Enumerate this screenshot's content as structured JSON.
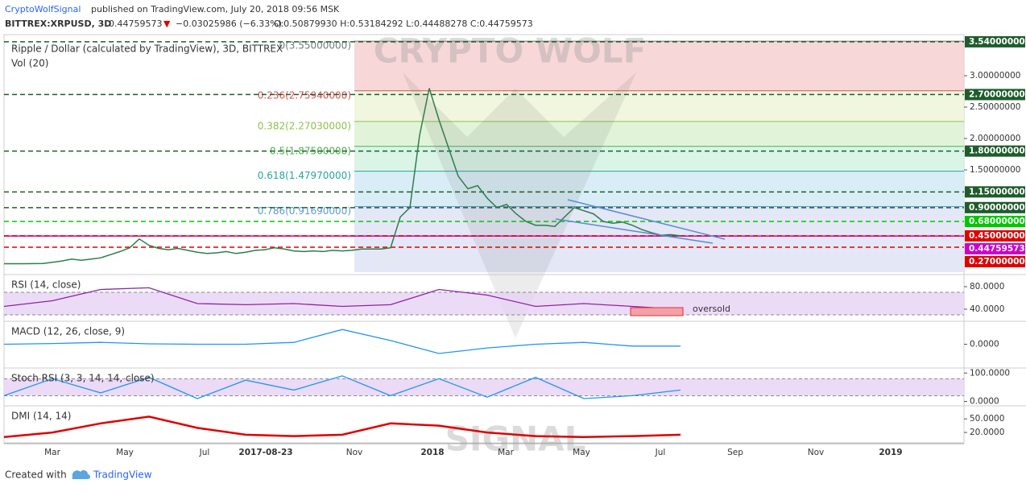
{
  "header": {
    "author": "CryptoWolfSignal",
    "published": "published on TradingView.com, July 20, 2018 09:56 MSK",
    "symbol": "BITTREX:XRPUSD, 3D",
    "last": "0.44759573",
    "change": "−0.03025986 (−6.33%)",
    "ohlc": "O:0.50879930 H:0.53184292 L:0.44488278 C:0.44759573"
  },
  "watermark": [
    "CRYPTO WOLF",
    "SIGNAL"
  ],
  "footer": {
    "created": "Created with",
    "brand": "TradingView"
  },
  "chart_data": {
    "type": "line",
    "title": "Ripple / Dollar (calculated by TradingView), 3D, BITTREX",
    "subtitle": "Vol (20)",
    "color": "#2e7d4f",
    "x_labels": [
      "Mar",
      "May",
      "Jul",
      "2017-08-23",
      "Nov",
      "2018",
      "Mar",
      "May",
      "Jul",
      "Sep",
      "Nov",
      "2019"
    ],
    "values": [
      0.006,
      0.006,
      0.007,
      0.008,
      0.009,
      0.03,
      0.05,
      0.08,
      0.06,
      0.08,
      0.1,
      0.15,
      0.2,
      0.26,
      0.4,
      0.3,
      0.25,
      0.23,
      0.25,
      0.22,
      0.19,
      0.17,
      0.18,
      0.2,
      0.17,
      0.19,
      0.22,
      0.23,
      0.26,
      0.24,
      0.21,
      0.2,
      0.21,
      0.2,
      0.22,
      0.21,
      0.22,
      0.24,
      0.24,
      0.24,
      0.26,
      0.75,
      0.9,
      2.05,
      2.8,
      2.3,
      1.85,
      1.4,
      1.2,
      1.25,
      1.05,
      0.9,
      0.95,
      0.8,
      0.68,
      0.62,
      0.62,
      0.6,
      0.75,
      0.9,
      0.85,
      0.8,
      0.68,
      0.65,
      0.67,
      0.62,
      0.55,
      0.5,
      0.46,
      0.47,
      0.45
    ],
    "ylim": [
      -0.128,
      3.654
    ],
    "yticks": [
      {
        "value": 1.5,
        "label": "1.50000000"
      },
      {
        "value": 2.0,
        "label": "2.00000000"
      },
      {
        "value": 2.5,
        "label": "2.50000000"
      },
      {
        "value": 3.0,
        "label": "3.00000000"
      }
    ],
    "fib": [
      {
        "label": "0(3.55000000)",
        "price": 3.55,
        "color": "#777777",
        "fill": "#f6d0d0"
      },
      {
        "label": "0.236(2.75940000)",
        "price": 2.7594,
        "color": "#d9534f",
        "fill": "#eef5d8"
      },
      {
        "label": "0.382(2.27030000)",
        "price": 2.2703,
        "color": "#8bc34a",
        "fill": "#dcf2d2"
      },
      {
        "label": "0.5(1.87500000)",
        "price": 1.875,
        "color": "#4caf50",
        "fill": "#d3f2e3"
      },
      {
        "label": "0.618(1.47970000)",
        "price": 1.4797,
        "color": "#26a69a",
        "fill": "#d2eaf5"
      },
      {
        "label": "0.786(0.91690000)",
        "price": 0.9169,
        "color": "#5c9bd6",
        "fill": "#dfe3f4"
      }
    ],
    "levels": [
      {
        "value": 3.54,
        "label": "3.54000000",
        "color": "#1e5c2c"
      },
      {
        "value": 2.7,
        "label": "2.70000000",
        "color": "#1e5c2c"
      },
      {
        "value": 1.8,
        "label": "1.80000000",
        "color": "#1e5c2c"
      },
      {
        "value": 1.15,
        "label": "1.15000000",
        "color": "#1e5c2c"
      },
      {
        "value": 0.9,
        "label": "0.90000000",
        "color": "#1e5c2c"
      },
      {
        "value": 0.68,
        "label": "0.68000000",
        "color": "#00c800"
      },
      {
        "value": 0.44759573,
        "label": "0.44759573",
        "color": "#cc00cc"
      },
      {
        "value": 0.45,
        "label": "0.45000000",
        "color": "#e00000"
      },
      {
        "value": 0.27,
        "label": "0.27000000",
        "color": "#e00000"
      }
    ],
    "panels": [
      {
        "title": "RSI (14, close)",
        "color": "#8e24aa",
        "ylim": [
          20,
          100
        ],
        "band": [
          30,
          70
        ],
        "yticks": [
          {
            "value": 40,
            "label": "40.0000"
          },
          {
            "value": 80,
            "label": "80.0000"
          }
        ],
        "annotation": "oversold",
        "values": [
          45,
          55,
          75,
          78,
          50,
          48,
          50,
          45,
          48,
          75,
          65,
          45,
          50,
          45,
          40
        ]
      },
      {
        "title": "MACD (12, 26, close, 9)",
        "color": "#2196f3",
        "ylim": [
          -0.6,
          0.6
        ],
        "yticks": [
          {
            "value": 0,
            "label": "0.0000"
          }
        ],
        "values": [
          0,
          0.02,
          0.05,
          0.01,
          0,
          0,
          0.05,
          0.4,
          0.1,
          -0.25,
          -0.1,
          0,
          0.05,
          -0.05,
          -0.05
        ]
      },
      {
        "title": "Stoch RSI (3, 3, 14, 14, close)",
        "color": "#2196f3",
        "ylim": [
          -10,
          115
        ],
        "band": [
          20,
          80
        ],
        "yticks": [
          {
            "value": 0,
            "label": "0.0000"
          },
          {
            "value": 100,
            "label": "100.0000"
          }
        ],
        "values": [
          20,
          80,
          30,
          85,
          10,
          75,
          40,
          90,
          20,
          80,
          15,
          85,
          10,
          20,
          40
        ]
      },
      {
        "title": "DMI (14, 14)",
        "color": "#e00000",
        "ylim": [
          -3,
          77
        ],
        "yticks": [
          {
            "value": 20,
            "label": "20.0000"
          },
          {
            "value": 50,
            "label": "50.0000"
          }
        ],
        "values": [
          10,
          20,
          40,
          55,
          30,
          15,
          12,
          15,
          40,
          35,
          20,
          12,
          10,
          12,
          15
        ]
      }
    ]
  }
}
